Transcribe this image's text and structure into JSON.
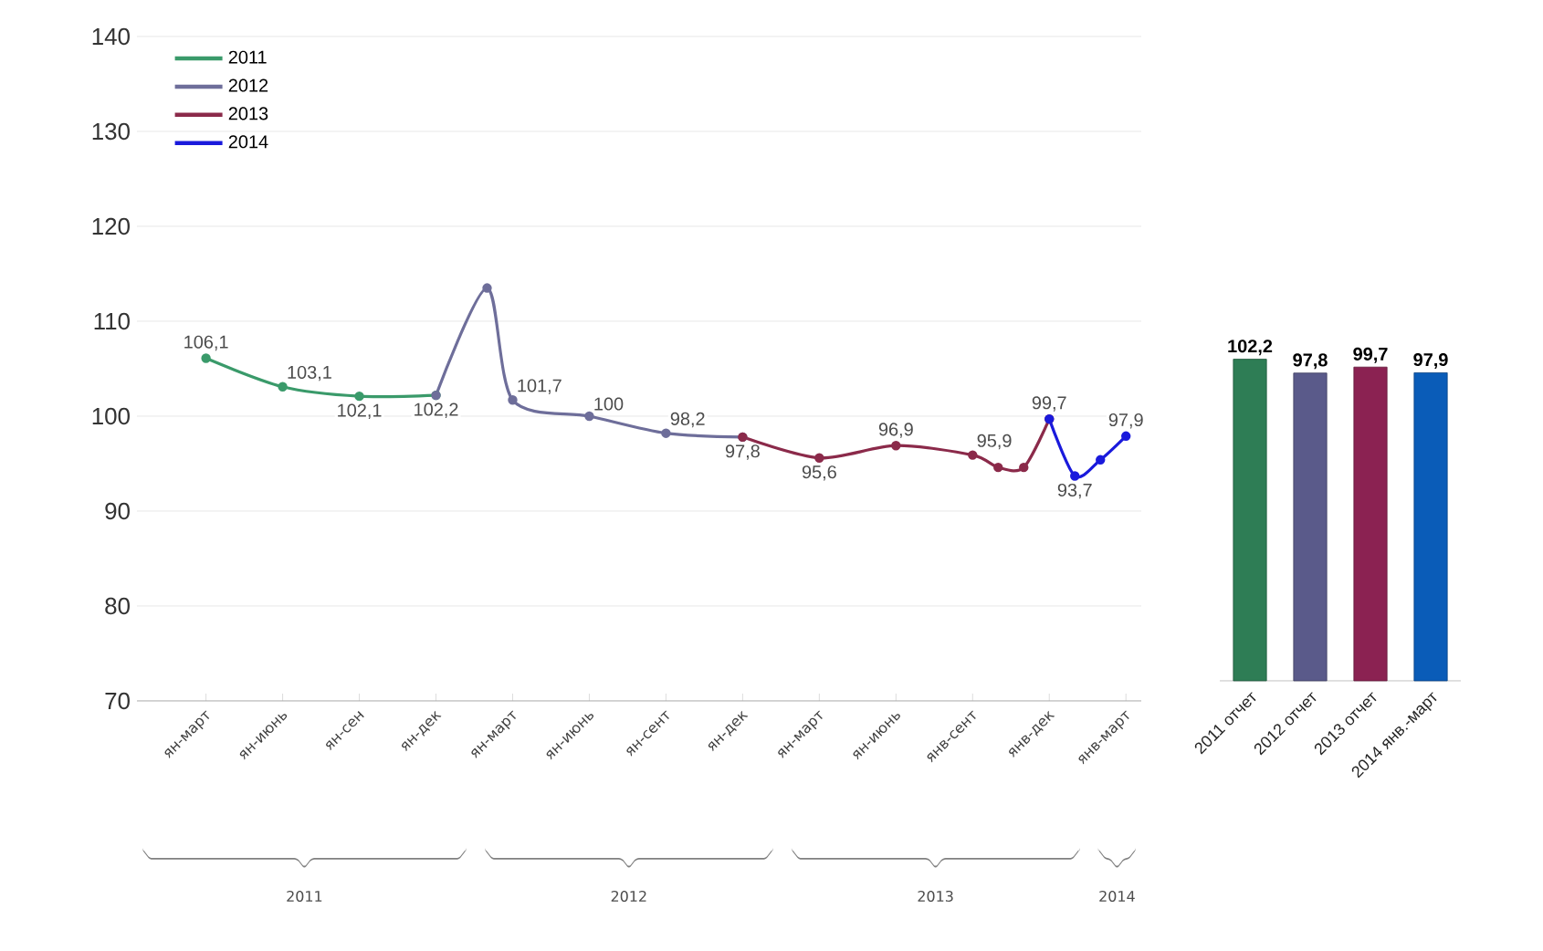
{
  "chart_data": [
    {
      "type": "line",
      "categories": [
        "ян-март",
        null,
        null,
        "ян-июнь",
        null,
        null,
        "ян-сен",
        null,
        null,
        "ян-дек",
        null,
        null,
        "ян-март",
        null,
        null,
        "ян-июнь",
        null,
        null,
        "ян-сент",
        null,
        null,
        "ян-дек",
        null,
        null,
        "ян-март",
        null,
        null,
        "ян-июнь",
        null,
        null,
        "янв-сент",
        null,
        null,
        "янв-дек",
        null,
        null,
        "янв-март"
      ],
      "series": [
        {
          "name": "2011",
          "color": "#3a9a6a",
          "values": [
            106.1,
            null,
            null,
            103.1,
            null,
            null,
            102.1,
            null,
            null,
            102.2,
            null,
            null,
            null,
            null,
            null,
            null,
            null,
            null,
            null,
            null,
            null,
            null,
            null,
            null,
            null,
            null,
            null,
            null,
            null,
            null,
            null,
            null,
            null,
            null,
            null,
            null,
            null
          ],
          "value_labels": [
            "106,1",
            null,
            null,
            "103,1",
            null,
            null,
            "102,1",
            null,
            null,
            "102,2",
            null,
            null,
            null,
            null,
            null,
            null,
            null,
            null,
            null,
            null,
            null,
            null,
            null,
            null,
            null,
            null,
            null,
            null,
            null,
            null,
            null,
            null,
            null,
            null,
            null,
            null,
            null
          ]
        },
        {
          "name": "2012",
          "color": "#6e6e9a",
          "values": [
            null,
            null,
            null,
            null,
            null,
            null,
            null,
            null,
            null,
            102.2,
            null,
            113.5,
            101.7,
            null,
            null,
            100,
            null,
            null,
            98.2,
            null,
            null,
            97.8,
            null,
            null,
            null,
            null,
            null,
            null,
            null,
            null,
            null,
            null,
            null,
            null,
            null,
            null,
            null
          ],
          "value_labels": [
            null,
            null,
            null,
            null,
            null,
            null,
            null,
            null,
            null,
            null,
            null,
            null,
            "101,7",
            null,
            null,
            "100",
            null,
            null,
            "98,2",
            null,
            null,
            "97,8",
            null,
            null,
            null,
            null,
            null,
            null,
            null,
            null,
            null,
            null,
            null,
            null,
            null,
            null,
            null
          ]
        },
        {
          "name": "2013",
          "color": "#8b2a4a",
          "values": [
            null,
            null,
            null,
            null,
            null,
            null,
            null,
            null,
            null,
            null,
            null,
            null,
            null,
            null,
            null,
            null,
            null,
            null,
            null,
            null,
            null,
            97.8,
            null,
            null,
            95.6,
            null,
            null,
            96.9,
            null,
            null,
            95.9,
            94.6,
            94.6,
            99.7,
            null,
            null,
            null
          ],
          "value_labels": [
            null,
            null,
            null,
            null,
            null,
            null,
            null,
            null,
            null,
            null,
            null,
            null,
            null,
            null,
            null,
            null,
            null,
            null,
            null,
            null,
            null,
            null,
            null,
            null,
            "95,6",
            null,
            null,
            "96,9",
            null,
            null,
            "95,9",
            null,
            null,
            "99,7",
            null,
            null,
            null
          ]
        },
        {
          "name": "2014",
          "color": "#1a1adc",
          "values": [
            null,
            null,
            null,
            null,
            null,
            null,
            null,
            null,
            null,
            null,
            null,
            null,
            null,
            null,
            null,
            null,
            null,
            null,
            null,
            null,
            null,
            null,
            null,
            null,
            null,
            null,
            null,
            null,
            null,
            null,
            null,
            null,
            null,
            99.7,
            93.7,
            95.4,
            97.9
          ],
          "value_labels": [
            null,
            null,
            null,
            null,
            null,
            null,
            null,
            null,
            null,
            null,
            null,
            null,
            null,
            null,
            null,
            null,
            null,
            null,
            null,
            null,
            null,
            null,
            null,
            null,
            null,
            null,
            null,
            null,
            null,
            null,
            null,
            null,
            null,
            null,
            "93,7",
            null,
            "97,9"
          ]
        }
      ],
      "ylim": [
        70,
        140
      ],
      "yticks": [
        70,
        80,
        90,
        100,
        110,
        120,
        130,
        140
      ],
      "grid": "y",
      "legend": "top left",
      "marker": "circle",
      "line_style": "solid",
      "annotations": [
        "2011",
        "2012",
        "2013",
        "2014"
      ]
    },
    {
      "type": "bar",
      "categories": [
        "2011 отчет",
        "2012 отчет",
        "2013 отчет",
        "2014 янв.-март"
      ],
      "values": [
        102.2,
        97.8,
        99.7,
        97.9
      ],
      "colors": [
        "#2e7d55",
        "#5a5a8a",
        "#8b2252",
        "#0a5cb8"
      ],
      "value_labels": [
        "102,2",
        "97,8",
        "99,7",
        "97,9"
      ],
      "tick_labels": "x"
    }
  ]
}
